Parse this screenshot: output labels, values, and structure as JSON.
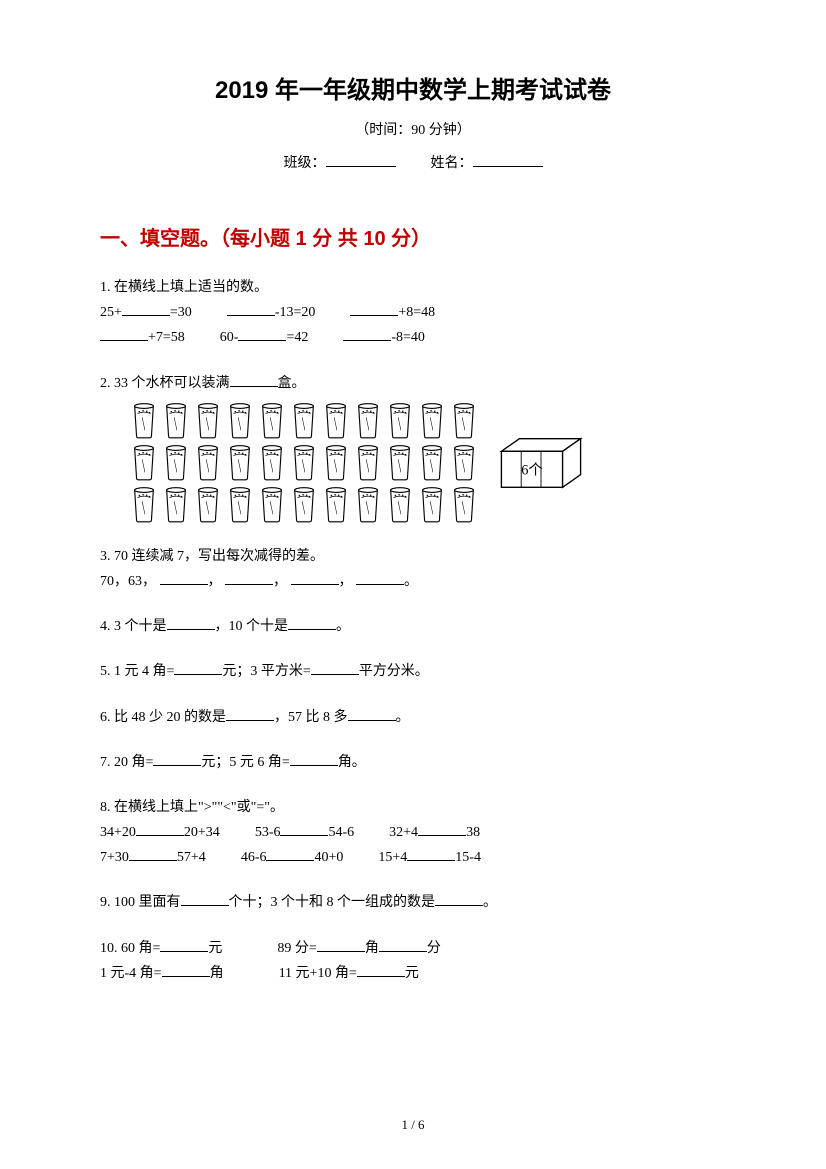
{
  "title": "2019 年一年级期中数学上期考试试卷",
  "subtitle": "（时间：90 分钟）",
  "info": {
    "class_label": "班级：",
    "name_label": "姓名："
  },
  "section1": {
    "header": "一、填空题。（每小题 1 分  共 10 分）",
    "header_color": "#c00000"
  },
  "q1": {
    "label": "1.   在横线上填上适当的数。",
    "parts": [
      "25+",
      "=30",
      "-13=20",
      "+8=48",
      "+7=58",
      "60-",
      "=42",
      "-8=40"
    ]
  },
  "q2": {
    "label": "2.   33 个水杯可以装满",
    "suffix": "盒。",
    "cup_rows": 3,
    "cup_cols": 11,
    "box_label": "6个"
  },
  "q3": {
    "label": "3.   70 连续减 7，写出每次减得的差。",
    "line2_prefix": "70，63，",
    "sep": "，",
    "end": "。"
  },
  "q4": {
    "label": "4.   3 个十是",
    "mid": "，10 个十是",
    "end": "。"
  },
  "q5": {
    "label": "5.   1 元 4 角=",
    "mid": "元；3 平方米=",
    "end": "平方分米。"
  },
  "q6": {
    "label": "6.   比 48 少 20 的数是",
    "mid": "，57 比 8 多",
    "end": "。"
  },
  "q7": {
    "label": "7.   20 角=",
    "mid": "元；5 元 6 角=",
    "end": "角。"
  },
  "q8": {
    "label": "8.   在横线上填上\">\"\"<\"或\"=\"。",
    "r1": [
      "34+20",
      "20+34",
      "53-6",
      "54-6",
      "32+4",
      "38"
    ],
    "r2": [
      "7+30",
      "57+4",
      "46-6",
      "40+0",
      "15+4",
      "15-4"
    ]
  },
  "q9": {
    "label": "9.   100 里面有",
    "mid": "个十；3 个十和 8 个一组成的数是",
    "end": "。"
  },
  "q10": {
    "label": "10.   60 角=",
    "p1": "元",
    "p2": "89 分=",
    "p3": "角",
    "p4": "分",
    "line2a": "1 元-4 角=",
    "line2b": "角",
    "line2c": "11 元+10 角=",
    "line2d": "元"
  },
  "page_num": "1  /  6",
  "colors": {
    "text": "#000000",
    "accent": "#c00000",
    "bg": "#ffffff"
  }
}
